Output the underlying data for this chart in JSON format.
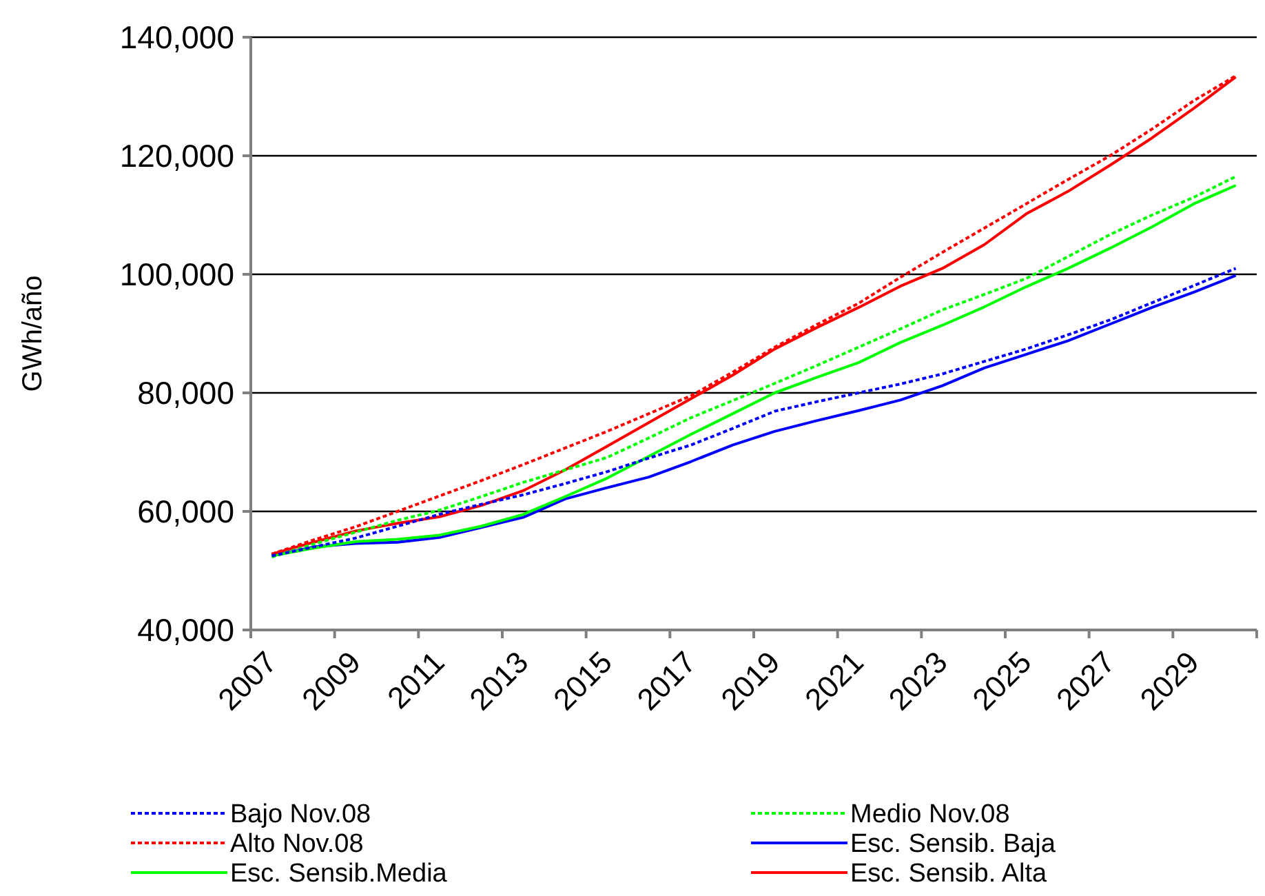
{
  "chart_data": {
    "type": "line",
    "ylabel": "GWh/año",
    "categories": [
      "2007",
      null,
      "2009",
      null,
      "2011",
      null,
      "2013",
      null,
      "2015",
      null,
      "2017",
      null,
      "2019",
      null,
      "2021",
      null,
      "2023",
      null,
      "2025",
      null,
      "2027",
      null,
      "2029",
      null
    ],
    "ylim": [
      40000,
      140000
    ],
    "yticks": [
      {
        "value": 40000,
        "label": "40,000"
      },
      {
        "value": 60000,
        "label": "60,000"
      },
      {
        "value": 80000,
        "label": "80,000"
      },
      {
        "value": 100000,
        "label": "100,000"
      },
      {
        "value": 120000,
        "label": "120,000"
      },
      {
        "value": 140000,
        "label": "140,000"
      }
    ],
    "grid": "y",
    "legend": "bottom",
    "marker": "none",
    "series": [
      {
        "name": "Bajo Nov.08",
        "color": "#0000ff",
        "line_style": "dotted",
        "values": [
          52500,
          54000,
          55500,
          57500,
          59500,
          61200,
          62800,
          64700,
          66700,
          69000,
          71200,
          74000,
          76900,
          78500,
          80000,
          81500,
          83200,
          85300,
          87400,
          89800,
          92300,
          95200,
          98100,
          101000
        ]
      },
      {
        "name": "Medio Nov.08",
        "color": "#00ff00",
        "line_style": "dotted",
        "values": [
          52300,
          54500,
          56500,
          58500,
          60200,
          62500,
          64900,
          67000,
          69100,
          72400,
          75800,
          78700,
          81600,
          84600,
          87700,
          90800,
          94000,
          96600,
          99300,
          103000,
          106700,
          110000,
          113000,
          116500
        ]
      },
      {
        "name": "Alto Nov.08",
        "color": "#ff0000",
        "line_style": "dotted",
        "values": [
          52800,
          55200,
          57400,
          60000,
          62600,
          65200,
          67900,
          70700,
          73500,
          76500,
          79500,
          83500,
          87700,
          91500,
          95100,
          99500,
          103700,
          107800,
          111900,
          116000,
          120000,
          124500,
          129300,
          133500
        ]
      },
      {
        "name": "Esc. Sensib. Baja",
        "color": "#0000ff",
        "line_style": "solid",
        "values": [
          52500,
          54000,
          54600,
          54800,
          55600,
          57300,
          59000,
          62100,
          64000,
          65800,
          68400,
          71200,
          73500,
          75300,
          77000,
          78800,
          81200,
          84200,
          86500,
          88800,
          91600,
          94400,
          97000,
          99800
        ]
      },
      {
        "name": "Esc. Sensib.Media",
        "color": "#00ff00",
        "line_style": "solid",
        "values": [
          52500,
          53800,
          54900,
          55300,
          56000,
          57500,
          59500,
          62500,
          65600,
          69300,
          73000,
          76500,
          80000,
          82600,
          85100,
          88500,
          91400,
          94500,
          97900,
          101000,
          104400,
          108000,
          111900,
          115000
        ]
      },
      {
        "name": "Esc. Sensib. Alta",
        "color": "#ff0000",
        "line_style": "solid",
        "values": [
          52800,
          54800,
          56700,
          58000,
          59100,
          61000,
          63500,
          67000,
          71000,
          75000,
          79000,
          83000,
          87400,
          91000,
          94400,
          98000,
          101000,
          105000,
          110200,
          114000,
          118400,
          123000,
          128000,
          133300
        ]
      }
    ]
  }
}
